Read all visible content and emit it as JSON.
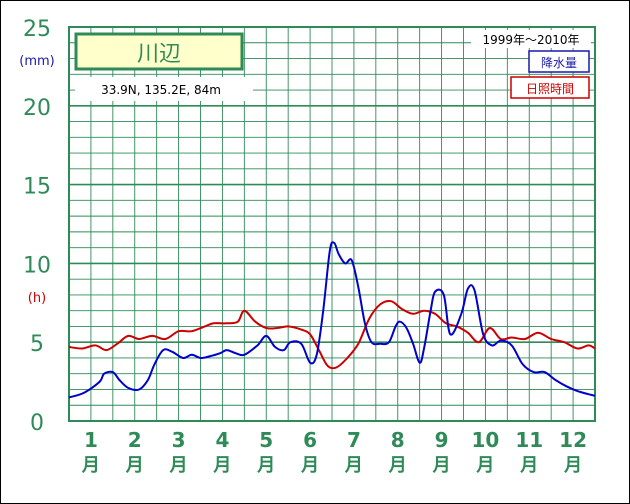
{
  "chart_data": {
    "type": "line",
    "title": "川辺",
    "location": "33.9N,  135.2E,  84m",
    "period": "1999年〜2010年",
    "y_unit_left": "(mm)",
    "y_unit_right": "(h)",
    "ylim": [
      0,
      25
    ],
    "y_ticks": [
      "0",
      "5",
      "10",
      "15",
      "20",
      "25"
    ],
    "x_major": [
      "1",
      "2",
      "3",
      "4",
      "5",
      "6",
      "7",
      "8",
      "9",
      "10",
      "11",
      "12"
    ],
    "x_minor_label": "月",
    "grid": true,
    "legend_position": "top-right",
    "series": [
      {
        "name": "降水量",
        "color": "#0000cc",
        "x": [
          0,
          0.35,
          0.7,
          0.8,
          1.0,
          1.15,
          1.35,
          1.6,
          1.8,
          1.95,
          2.15,
          2.35,
          2.6,
          2.8,
          3.0,
          3.2,
          3.45,
          3.6,
          3.8,
          4.0,
          4.3,
          4.5,
          4.7,
          4.9,
          5.05,
          5.3,
          5.5,
          5.65,
          5.8,
          5.95,
          6.05,
          6.15,
          6.3,
          6.45,
          6.6,
          6.75,
          6.9,
          7.1,
          7.3,
          7.45,
          7.55,
          7.7,
          7.85,
          8.0,
          8.1,
          8.25,
          8.35,
          8.55,
          8.7,
          8.95,
          9.1,
          9.25,
          9.45,
          9.65,
          9.85,
          10.1,
          10.35,
          10.6,
          10.85,
          11.1,
          11.35,
          11.6,
          11.85,
          12.0
        ],
        "values": [
          1.5,
          1.8,
          2.5,
          3.0,
          3.1,
          2.6,
          2.1,
          2.0,
          2.6,
          3.6,
          4.5,
          4.4,
          4.0,
          4.2,
          4.0,
          4.1,
          4.3,
          4.5,
          4.3,
          4.2,
          4.8,
          5.4,
          4.7,
          4.5,
          5.0,
          4.9,
          3.7,
          4.2,
          7.0,
          10.8,
          11.3,
          10.6,
          10.0,
          10.2,
          8.5,
          6.2,
          5.0,
          4.9,
          5.0,
          6.0,
          6.3,
          5.9,
          4.9,
          3.7,
          4.6,
          7.0,
          8.2,
          8.0,
          5.5,
          6.8,
          8.4,
          8.3,
          5.5,
          4.8,
          5.1,
          4.8,
          3.6,
          3.1,
          3.1,
          2.6,
          2.2,
          1.9,
          1.7,
          1.6
        ]
      },
      {
        "name": "日照時間",
        "color": "#cc0000",
        "x": [
          0,
          0.3,
          0.6,
          0.85,
          1.1,
          1.35,
          1.6,
          1.9,
          2.2,
          2.5,
          2.8,
          3.1,
          3.3,
          3.6,
          3.85,
          4.0,
          4.25,
          4.5,
          4.75,
          5.0,
          5.3,
          5.5,
          5.7,
          5.9,
          6.1,
          6.35,
          6.6,
          6.85,
          7.1,
          7.35,
          7.6,
          7.85,
          8.1,
          8.35,
          8.6,
          8.85,
          9.1,
          9.35,
          9.6,
          9.85,
          10.1,
          10.4,
          10.7,
          11.0,
          11.3,
          11.6,
          11.85,
          12.0
        ],
        "values": [
          4.7,
          4.6,
          4.8,
          4.5,
          4.9,
          5.4,
          5.2,
          5.4,
          5.2,
          5.7,
          5.7,
          6.0,
          6.2,
          6.2,
          6.3,
          7.0,
          6.3,
          5.9,
          5.9,
          6.0,
          5.8,
          5.5,
          4.5,
          3.5,
          3.4,
          4.0,
          4.9,
          6.5,
          7.4,
          7.6,
          7.1,
          6.8,
          7.0,
          6.8,
          6.2,
          6.0,
          5.6,
          5.0,
          5.9,
          5.2,
          5.3,
          5.2,
          5.6,
          5.2,
          5.0,
          4.6,
          4.8,
          4.6
        ]
      }
    ]
  }
}
